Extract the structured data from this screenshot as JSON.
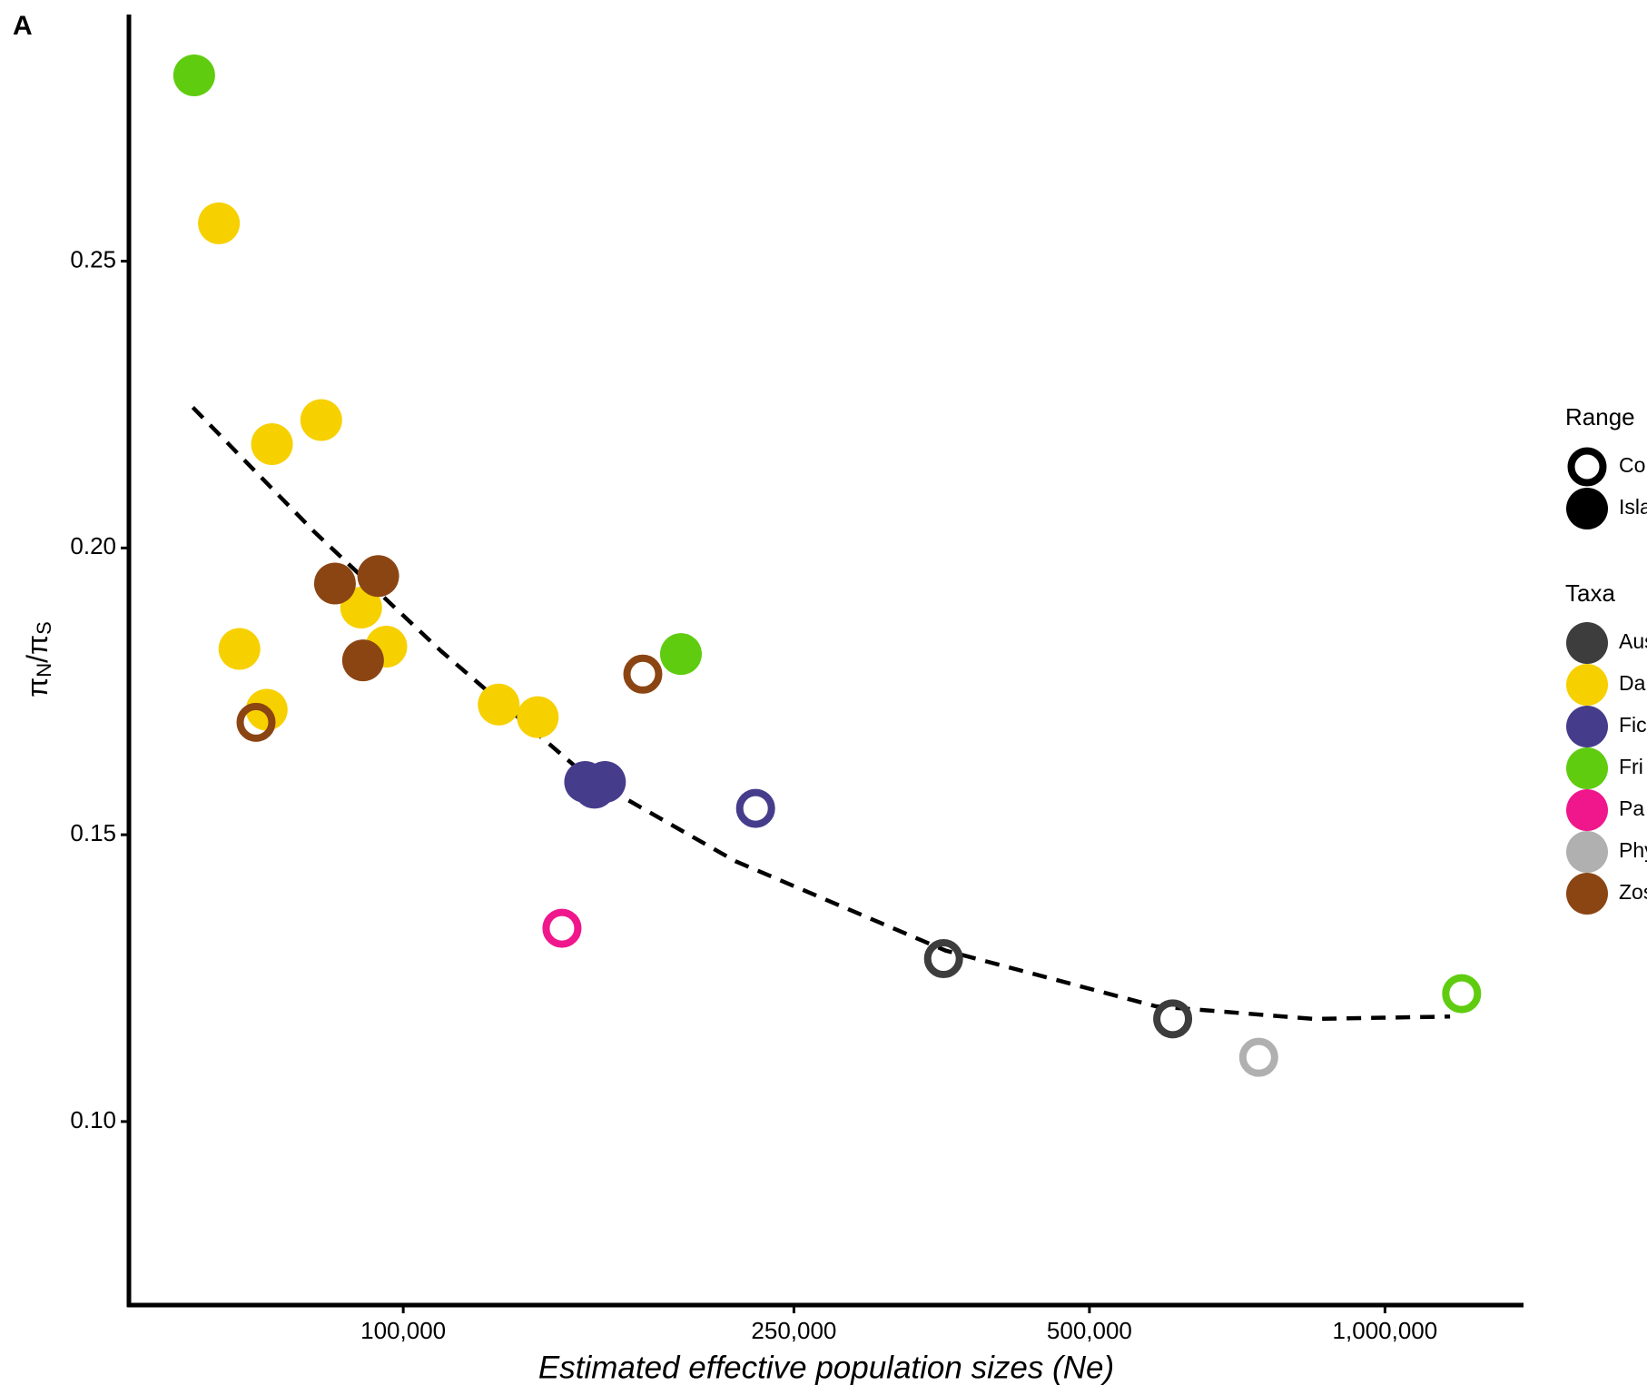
{
  "chart_data": {
    "type": "scatter",
    "log_x": true,
    "panel_label": "A",
    "x_label": "Estimated effective population sizes (Ne)",
    "y_label": {
      "pi1": "π",
      "sub1": "N",
      "pi2": "/π",
      "sub2": "S"
    },
    "xlim": [
      52550,
      1384000
    ],
    "ylim": [
      0.068,
      0.293
    ],
    "xticks": [
      {
        "value": 100000,
        "label": "100,000"
      },
      {
        "value": 250000,
        "label": "250,000"
      },
      {
        "value": 500000,
        "label": "500,000"
      },
      {
        "value": 1000000,
        "label": "1,000,000"
      }
    ],
    "yticks": [
      {
        "value": 0.1,
        "label": "0.10"
      },
      0.15,
      {
        "value": 0.2,
        "label": "0.20"
      },
      0.25
    ],
    "range_legend": {
      "title": "Range",
      "items": [
        {
          "label": "Co",
          "open": true
        },
        {
          "label": "Isla",
          "open": false
        }
      ]
    },
    "taxa_legend_title": "Taxa",
    "series": [
      {
        "name": "Aus",
        "color": "#3d3d3d",
        "x": [
          355100,
          607800
        ],
        "values": [
          0.1284,
          0.1179
        ],
        "open": [
          true,
          true
        ]
      },
      {
        "name": "Da",
        "color": "#f7d000",
        "x": [
          64900,
          73500,
          82500,
          90600,
          96100,
          68100,
          72600,
          125100,
          137100
        ],
        "values": [
          0.2566,
          0.2181,
          0.2223,
          0.1896,
          0.1828,
          0.1824,
          0.1718,
          0.1727,
          0.1705
        ],
        "open": [
          false,
          false,
          false,
          false,
          false,
          false,
          false,
          false,
          false
        ]
      },
      {
        "name": "Fic",
        "color": "#463c8c",
        "x": [
          153200,
          160500,
          156600,
          228500
        ],
        "values": [
          0.1592,
          0.1592,
          0.1582,
          0.1546
        ],
        "open": [
          false,
          false,
          false,
          true
        ]
      },
      {
        "name": "Fri",
        "color": "#5fcc10",
        "x": [
          61240,
          191800,
          1197000
        ],
        "values": [
          0.2824,
          0.1815,
          0.1223
        ],
        "open": [
          false,
          false,
          true
        ]
      },
      {
        "name": "Pa",
        "color": "#f0168c",
        "x": [
          145100
        ],
        "values": [
          0.1337
        ],
        "open": [
          true
        ]
      },
      {
        "name": "Phy",
        "color": "#b0b0b0",
        "x": [
          743700
        ],
        "values": [
          0.1112
        ],
        "open": [
          true
        ]
      },
      {
        "name": "Zos",
        "color": "#8b4513",
        "x": [
          85200,
          94300,
          91000,
          70800,
          175400
        ],
        "values": [
          0.1938,
          0.1951,
          0.1804,
          0.1696,
          0.178
        ],
        "open": [
          false,
          false,
          false,
          true,
          true
        ]
      }
    ],
    "fit": {
      "color": "#000000",
      "x": [
        61050,
        81300,
        109300,
        154300,
        217900,
        356900,
        584200,
        845800,
        1165000
      ],
      "values": [
        0.2245,
        0.2027,
        0.182,
        0.16,
        0.1454,
        0.1298,
        0.1201,
        0.1179,
        0.1183
      ]
    }
  }
}
